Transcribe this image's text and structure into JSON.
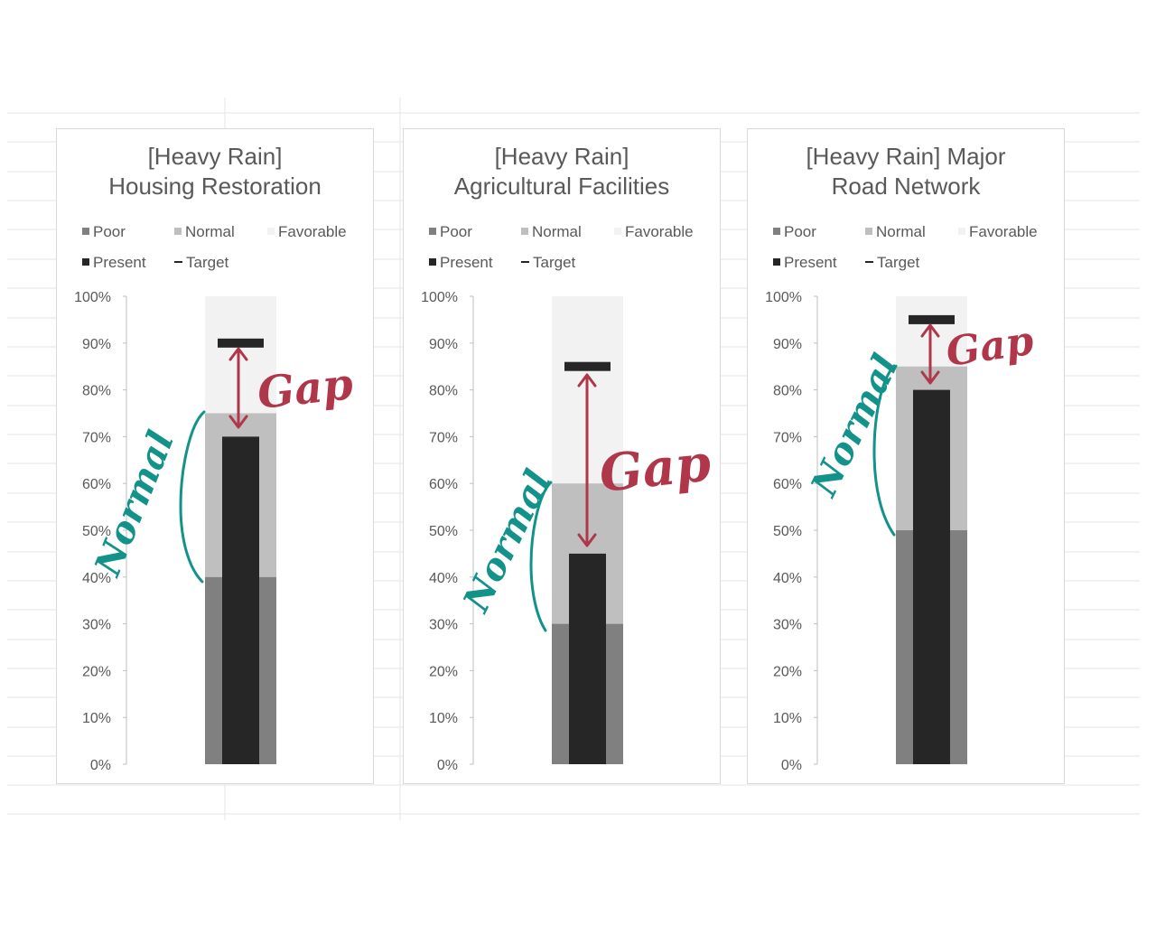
{
  "colors": {
    "poor": "#808080",
    "normal": "#bfbfbf",
    "favorable": "#f2f2f2",
    "present": "#262626",
    "target": "#262626",
    "gap_note": "#b0364a",
    "normal_note": "#13928a"
  },
  "legend": {
    "poor": "Poor",
    "normal": "Normal",
    "favorable": "Favorable",
    "present": "Present",
    "target": "Target"
  },
  "annotations": {
    "gap": "Gap",
    "normal": "Normal"
  },
  "chart_data": [
    {
      "type": "bar",
      "title_lines": [
        "[Heavy Rain]",
        "Housing Restoration"
      ],
      "ylim": [
        0,
        100
      ],
      "yticks": [
        "0%",
        "10%",
        "20%",
        "30%",
        "40%",
        "50%",
        "60%",
        "70%",
        "80%",
        "90%",
        "100%"
      ],
      "bands": {
        "poor": 40,
        "normal": 75,
        "favorable": 100
      },
      "present": 70,
      "target": 90
    },
    {
      "type": "bar",
      "title_lines": [
        "[Heavy Rain]",
        "Agricultural Facilities"
      ],
      "ylim": [
        0,
        100
      ],
      "yticks": [
        "0%",
        "10%",
        "20%",
        "30%",
        "40%",
        "50%",
        "60%",
        "70%",
        "80%",
        "90%",
        "100%"
      ],
      "bands": {
        "poor": 30,
        "normal": 60,
        "favorable": 100
      },
      "present": 45,
      "target": 85
    },
    {
      "type": "bar",
      "title_lines": [
        "[Heavy Rain] Major",
        "Road Network"
      ],
      "ylim": [
        0,
        100
      ],
      "yticks": [
        "0%",
        "10%",
        "20%",
        "30%",
        "40%",
        "50%",
        "60%",
        "70%",
        "80%",
        "90%",
        "100%"
      ],
      "bands": {
        "poor": 50,
        "normal": 85,
        "favorable": 100
      },
      "present": 80,
      "target": 95
    }
  ]
}
